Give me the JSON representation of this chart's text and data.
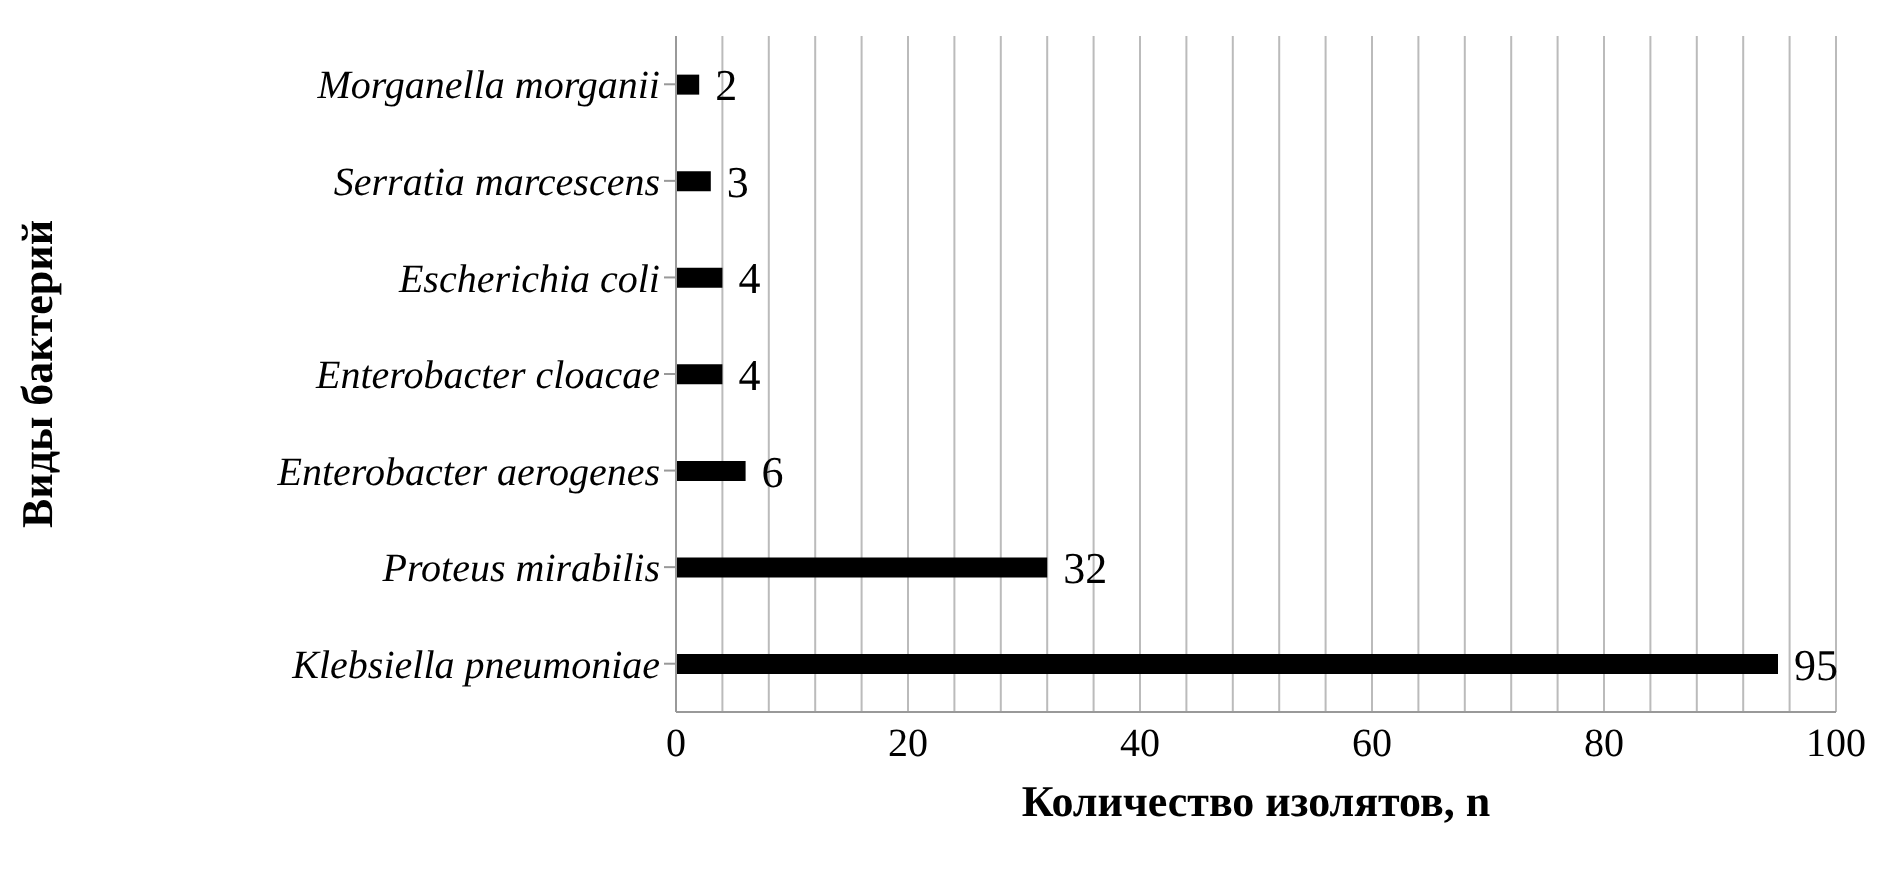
{
  "chart_data": {
    "type": "bar",
    "orientation": "horizontal",
    "xlabel": "Количество изолятов, n",
    "ylabel": "Виды бактерий",
    "categories": [
      "Morganella morganii",
      "Serratia marcescens",
      "Escherichia coli",
      "Enterobacter cloacae",
      "Enterobacter aerogenes",
      "Proteus mirabilis",
      "Klebsiella pneumoniae"
    ],
    "values": [
      2,
      3,
      4,
      4,
      6,
      32,
      95
    ],
    "color": "#000000",
    "xlim": [
      0,
      100
    ],
    "xticks": [
      0,
      {
        "value": 4,
        "label": null
      },
      {
        "value": 8,
        "label": null
      },
      {
        "value": 12,
        "label": null
      },
      {
        "value": 16,
        "label": null
      },
      20,
      {
        "value": 24,
        "label": null
      },
      {
        "value": 28,
        "label": null
      },
      {
        "value": 32,
        "label": null
      },
      {
        "value": 36,
        "label": null
      },
      40,
      {
        "value": 44,
        "label": null
      },
      {
        "value": 48,
        "label": null
      },
      {
        "value": 52,
        "label": null
      },
      {
        "value": 56,
        "label": null
      },
      60,
      {
        "value": 64,
        "label": null
      },
      {
        "value": 68,
        "label": null
      },
      {
        "value": 72,
        "label": null
      },
      {
        "value": 76,
        "label": null
      },
      80,
      {
        "value": 84,
        "label": null
      },
      {
        "value": 88,
        "label": null
      },
      {
        "value": 92,
        "label": null
      },
      {
        "value": 96,
        "label": null
      },
      100
    ],
    "grid": "x",
    "data_labels": true
  }
}
